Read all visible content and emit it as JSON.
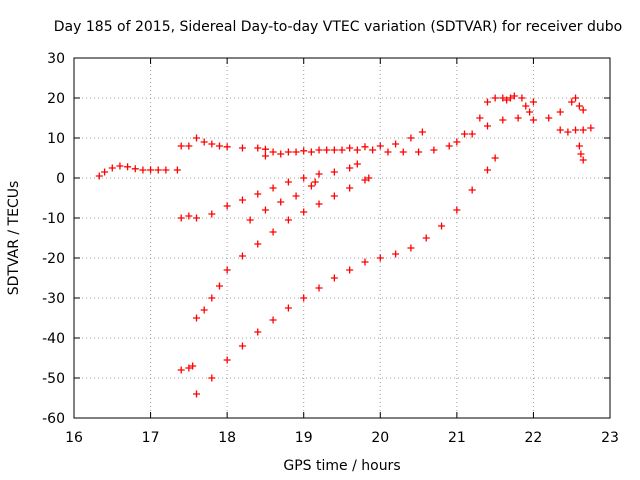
{
  "chart_data": {
    "type": "scatter",
    "title": "Day 185 of 2015, Sidereal Day-to-day VTEC variation (SDTVAR) for receiver dubo",
    "xlabel": "GPS time / hours",
    "ylabel": "SDTVAR / TECUs",
    "xlim": [
      16,
      23
    ],
    "ylim": [
      -60,
      30
    ],
    "xticks": [
      "16",
      "17",
      "18",
      "19",
      "20",
      "21",
      "22",
      "23"
    ],
    "yticks": [
      "-60",
      "-50",
      "-40",
      "-30",
      "-20",
      "-10",
      "0",
      "10",
      "20",
      "30"
    ],
    "grid": true,
    "marker": "+",
    "color": "#ff0000",
    "series": [
      {
        "values": [
          [
            16.33,
            0.5
          ],
          [
            16.4,
            1.5
          ],
          [
            16.5,
            2.5
          ],
          [
            16.6,
            3.0
          ],
          [
            16.7,
            2.8
          ],
          [
            16.8,
            2.3
          ],
          [
            16.9,
            2.0
          ],
          [
            17.0,
            2.0
          ],
          [
            17.1,
            2.0
          ],
          [
            17.2,
            2.0
          ],
          [
            17.35,
            2.0
          ]
        ]
      },
      {
        "values": [
          [
            17.4,
            8.0
          ],
          [
            17.5,
            8.0
          ]
        ]
      },
      {
        "values": [
          [
            17.6,
            10.0
          ],
          [
            17.7,
            9.0
          ],
          [
            17.8,
            8.5
          ],
          [
            17.9,
            8.0
          ],
          [
            18.0,
            7.8
          ],
          [
            18.2,
            7.5
          ],
          [
            18.4,
            7.5
          ],
          [
            18.5,
            7.2
          ],
          [
            18.6,
            6.5
          ],
          [
            18.8,
            6.5
          ],
          [
            19.0,
            6.8
          ],
          [
            19.2,
            7.0
          ],
          [
            19.4,
            7.0
          ],
          [
            19.6,
            7.5
          ],
          [
            19.8,
            7.8
          ],
          [
            20.0,
            8.0
          ],
          [
            20.2,
            8.5
          ],
          [
            20.4,
            10.0
          ],
          [
            20.55,
            11.5
          ]
        ]
      },
      {
        "values": [
          [
            18.5,
            5.5
          ],
          [
            18.7,
            6.0
          ],
          [
            18.9,
            6.5
          ],
          [
            19.1,
            6.5
          ],
          [
            19.3,
            7.0
          ],
          [
            19.5,
            7.0
          ],
          [
            19.7,
            7.0
          ],
          [
            19.9,
            7.0
          ],
          [
            20.1,
            6.5
          ],
          [
            20.3,
            6.5
          ],
          [
            20.5,
            6.5
          ],
          [
            20.7,
            7.0
          ],
          [
            20.9,
            8.0
          ],
          [
            21.1,
            11.0
          ],
          [
            21.3,
            15.0
          ],
          [
            21.4,
            19.0
          ],
          [
            21.5,
            20.0
          ],
          [
            21.6,
            20.0
          ],
          [
            21.65,
            19.5
          ],
          [
            21.7,
            20.0
          ],
          [
            21.75,
            20.5
          ],
          [
            21.85,
            20.0
          ],
          [
            21.9,
            18.0
          ],
          [
            21.95,
            16.5
          ],
          [
            22.0,
            19.0
          ]
        ]
      },
      {
        "values": [
          [
            21.0,
            9.0
          ],
          [
            21.2,
            11.0
          ],
          [
            21.4,
            13.0
          ],
          [
            21.6,
            14.5
          ],
          [
            21.8,
            15.0
          ],
          [
            22.0,
            14.5
          ],
          [
            22.2,
            15.0
          ],
          [
            22.35,
            16.5
          ],
          [
            22.5,
            19.0
          ],
          [
            22.55,
            20.0
          ],
          [
            22.6,
            18.0
          ],
          [
            22.65,
            17.0
          ]
        ]
      },
      {
        "values": [
          [
            22.35,
            12.0
          ],
          [
            22.45,
            11.5
          ],
          [
            22.55,
            12.0
          ],
          [
            22.65,
            12.0
          ],
          [
            22.75,
            12.5
          ]
        ]
      },
      {
        "values": [
          [
            22.6,
            8.0
          ],
          [
            22.62,
            6.0
          ],
          [
            22.65,
            4.5
          ]
        ]
      },
      {
        "values": [
          [
            17.4,
            -10.0
          ],
          [
            17.5,
            -9.5
          ],
          [
            17.6,
            -10.0
          ],
          [
            17.8,
            -9.0
          ],
          [
            18.0,
            -7.0
          ],
          [
            18.2,
            -5.5
          ],
          [
            18.4,
            -4.0
          ],
          [
            18.6,
            -2.5
          ],
          [
            18.8,
            -1.0
          ],
          [
            19.0,
            0.0
          ],
          [
            19.2,
            1.0
          ],
          [
            19.4,
            1.5
          ],
          [
            19.6,
            2.5
          ],
          [
            19.7,
            3.5
          ]
        ]
      },
      {
        "values": [
          [
            18.3,
            -10.5
          ],
          [
            18.5,
            -8.0
          ],
          [
            18.7,
            -6.0
          ],
          [
            18.9,
            -4.5
          ],
          [
            19.1,
            -2.0
          ],
          [
            19.15,
            -1.0
          ]
        ]
      },
      {
        "values": [
          [
            17.6,
            -35.0
          ],
          [
            17.7,
            -33.0
          ],
          [
            17.8,
            -30.0
          ],
          [
            17.9,
            -27.0
          ],
          [
            18.0,
            -23.0
          ],
          [
            18.2,
            -19.5
          ],
          [
            18.4,
            -16.5
          ],
          [
            18.6,
            -13.5
          ],
          [
            18.8,
            -10.5
          ],
          [
            19.0,
            -8.5
          ],
          [
            19.2,
            -6.5
          ],
          [
            19.4,
            -4.5
          ],
          [
            19.6,
            -2.5
          ],
          [
            19.8,
            -0.5
          ],
          [
            19.85,
            0.0
          ]
        ]
      },
      {
        "values": [
          [
            17.4,
            -48.0
          ],
          [
            17.5,
            -47.5
          ],
          [
            17.55,
            -47.0
          ]
        ]
      },
      {
        "values": [
          [
            17.6,
            -54.0
          ],
          [
            17.8,
            -50.0
          ],
          [
            18.0,
            -45.5
          ],
          [
            18.2,
            -42.0
          ],
          [
            18.4,
            -38.5
          ],
          [
            18.6,
            -35.5
          ],
          [
            18.8,
            -32.5
          ],
          [
            19.0,
            -30.0
          ],
          [
            19.2,
            -27.5
          ],
          [
            19.4,
            -25.0
          ],
          [
            19.6,
            -23.0
          ],
          [
            19.8,
            -21.0
          ],
          [
            20.0,
            -20.0
          ],
          [
            20.2,
            -19.0
          ],
          [
            20.4,
            -17.5
          ],
          [
            20.6,
            -15.0
          ],
          [
            20.8,
            -12.0
          ],
          [
            21.0,
            -8.0
          ],
          [
            21.2,
            -3.0
          ],
          [
            21.4,
            2.0
          ],
          [
            21.5,
            5.0
          ]
        ]
      }
    ]
  }
}
